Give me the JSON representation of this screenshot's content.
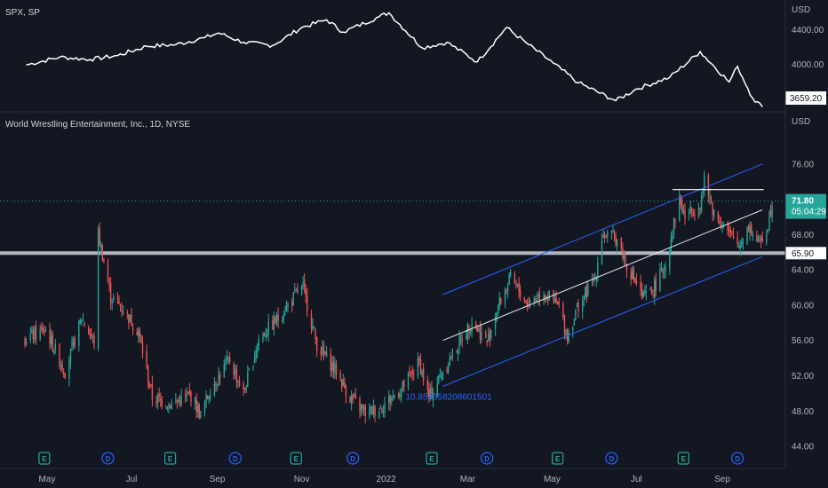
{
  "colors": {
    "background": "#131722",
    "up": "#26a69a",
    "down": "#ef5350",
    "channel": "#2962ff",
    "midline": "#e0e3eb",
    "support": "#b2b5be",
    "spx_line": "#ffffff",
    "price_tag": "#26a69a",
    "event_earnings": "#26a69a",
    "event_dividend": "#2962ff"
  },
  "chart_data": [
    {
      "type": "line",
      "name": "spx-pane",
      "legend": "SPX, SP",
      "currency": "USD",
      "y_ticks": [
        "4400.00",
        "4000.00"
      ],
      "ylim": [
        3550,
        4850
      ],
      "last_value": "3659.20",
      "x": [
        "2021-04-16",
        "2021-05-10",
        "2021-06-01",
        "2021-06-21",
        "2021-07-12",
        "2021-08-02",
        "2021-08-23",
        "2021-09-02",
        "2021-09-20",
        "2021-10-11",
        "2021-11-01",
        "2021-11-19",
        "2021-12-01",
        "2021-12-27",
        "2022-01-03",
        "2022-01-27",
        "2022-02-14",
        "2022-03-08",
        "2022-03-29",
        "2022-04-14",
        "2022-05-02",
        "2022-05-20",
        "2022-06-16",
        "2022-07-01",
        "2022-07-25",
        "2022-08-16",
        "2022-09-06",
        "2022-09-12",
        "2022-09-23",
        "2022-09-30"
      ],
      "y": [
        4130,
        4230,
        4200,
        4250,
        4370,
        4390,
        4480,
        4540,
        4420,
        4380,
        4610,
        4710,
        4550,
        4750,
        4800,
        4350,
        4420,
        4170,
        4610,
        4390,
        4150,
        3900,
        3670,
        3820,
        3970,
        4300,
        3910,
        4110,
        3700,
        3590
      ]
    },
    {
      "type": "candlestick",
      "name": "wwe-pane",
      "legend": "World Wrestling Entertainment, Inc., 1D, NYSE",
      "currency": "USD",
      "y_ticks": [
        "76.00",
        "72.00",
        "68.00",
        "64.00",
        "60.00",
        "56.00",
        "52.00",
        "48.00",
        "44.00"
      ],
      "ylim": [
        42.3,
        79.5
      ],
      "x_ticks": [
        "May",
        "Jul",
        "Sep",
        "Nov",
        "2022",
        "Mar",
        "May",
        "Jul",
        "Sep"
      ],
      "x_tick_dates": [
        "2021-05-01",
        "2021-07-01",
        "2021-09-01",
        "2021-11-01",
        "2022-01-01",
        "2022-03-01",
        "2022-05-01",
        "2022-07-01",
        "2022-09-01"
      ],
      "x_range": [
        "2021-04-15",
        "2022-10-27"
      ],
      "last_price": "71.80",
      "countdown": "05:04:29",
      "support_level": "65.90",
      "resistance_level": 73.1,
      "channel_label": "10.853358208601501",
      "channel": {
        "upper": [
          [
            "2022-02-11",
            61.2
          ],
          [
            "2022-09-30",
            76.0
          ]
        ],
        "middle": [
          [
            "2022-02-11",
            56.0
          ],
          [
            "2022-09-30",
            70.8
          ]
        ],
        "lower": [
          [
            "2022-02-11",
            50.8
          ],
          [
            "2022-09-30",
            65.5
          ]
        ]
      },
      "resistance_segment": [
        "2022-07-27",
        "2022-10-01"
      ],
      "path": [
        [
          "2021-04-15",
          56.2
        ],
        [
          "2021-04-30",
          57.2
        ],
        [
          "2021-05-14",
          52.5
        ],
        [
          "2021-05-26",
          58.5
        ],
        [
          "2021-06-04",
          55.8
        ],
        [
          "2021-06-07",
          68.0
        ],
        [
          "2021-06-16",
          61.0
        ],
        [
          "2021-06-25",
          59.5
        ],
        [
          "2021-07-06",
          57.0
        ],
        [
          "2021-07-16",
          49.5
        ],
        [
          "2021-07-30",
          48.8
        ],
        [
          "2021-08-13",
          49.8
        ],
        [
          "2021-08-20",
          47.5
        ],
        [
          "2021-08-27",
          50.5
        ],
        [
          "2021-09-10",
          53.8
        ],
        [
          "2021-09-20",
          50.0
        ],
        [
          "2021-10-01",
          56.2
        ],
        [
          "2021-10-15",
          58.5
        ],
        [
          "2021-10-29",
          61.5
        ],
        [
          "2021-11-02",
          62.0
        ],
        [
          "2021-11-12",
          55.5
        ],
        [
          "2021-11-26",
          52.5
        ],
        [
          "2021-12-06",
          49.5
        ],
        [
          "2021-12-17",
          47.8
        ],
        [
          "2021-12-29",
          48.5
        ],
        [
          "2022-01-12",
          50.5
        ],
        [
          "2022-01-25",
          53.5
        ],
        [
          "2022-02-01",
          49.5
        ],
        [
          "2022-02-11",
          52.5
        ],
        [
          "2022-02-24",
          56.0
        ],
        [
          "2022-03-04",
          58.2
        ],
        [
          "2022-03-15",
          55.8
        ],
        [
          "2022-03-22",
          59.5
        ],
        [
          "2022-04-01",
          63.0
        ],
        [
          "2022-04-13",
          60.2
        ],
        [
          "2022-04-25",
          61.5
        ],
        [
          "2022-05-06",
          59.8
        ],
        [
          "2022-05-12",
          56.5
        ],
        [
          "2022-05-20",
          60.0
        ],
        [
          "2022-06-01",
          63.0
        ],
        [
          "2022-06-06",
          68.0
        ],
        [
          "2022-06-17",
          67.5
        ],
        [
          "2022-06-24",
          64.5
        ],
        [
          "2022-07-01",
          62.5
        ],
        [
          "2022-07-05",
          60.8
        ],
        [
          "2022-07-12",
          61.5
        ],
        [
          "2022-07-22",
          64.5
        ],
        [
          "2022-07-27",
          68.5
        ],
        [
          "2022-08-01",
          72.0
        ],
        [
          "2022-08-05",
          70.0
        ],
        [
          "2022-08-16",
          71.5
        ],
        [
          "2022-08-19",
          74.0
        ],
        [
          "2022-08-26",
          70.5
        ],
        [
          "2022-09-06",
          68.0
        ],
        [
          "2022-09-13",
          66.8
        ],
        [
          "2022-09-20",
          69.0
        ],
        [
          "2022-09-27",
          67.0
        ],
        [
          "2022-10-03",
          68.5
        ],
        [
          "2022-10-07",
          71.8
        ]
      ],
      "events": [
        {
          "type": "E",
          "date": "2021-04-29"
        },
        {
          "type": "D",
          "date": "2021-06-14"
        },
        {
          "type": "E",
          "date": "2021-07-29"
        },
        {
          "type": "D",
          "date": "2021-09-14"
        },
        {
          "type": "E",
          "date": "2021-10-28"
        },
        {
          "type": "D",
          "date": "2021-12-08"
        },
        {
          "type": "E",
          "date": "2022-02-03"
        },
        {
          "type": "D",
          "date": "2022-03-15"
        },
        {
          "type": "E",
          "date": "2022-05-05"
        },
        {
          "type": "D",
          "date": "2022-06-13"
        },
        {
          "type": "E",
          "date": "2022-08-04"
        },
        {
          "type": "D",
          "date": "2022-09-12"
        }
      ]
    }
  ]
}
